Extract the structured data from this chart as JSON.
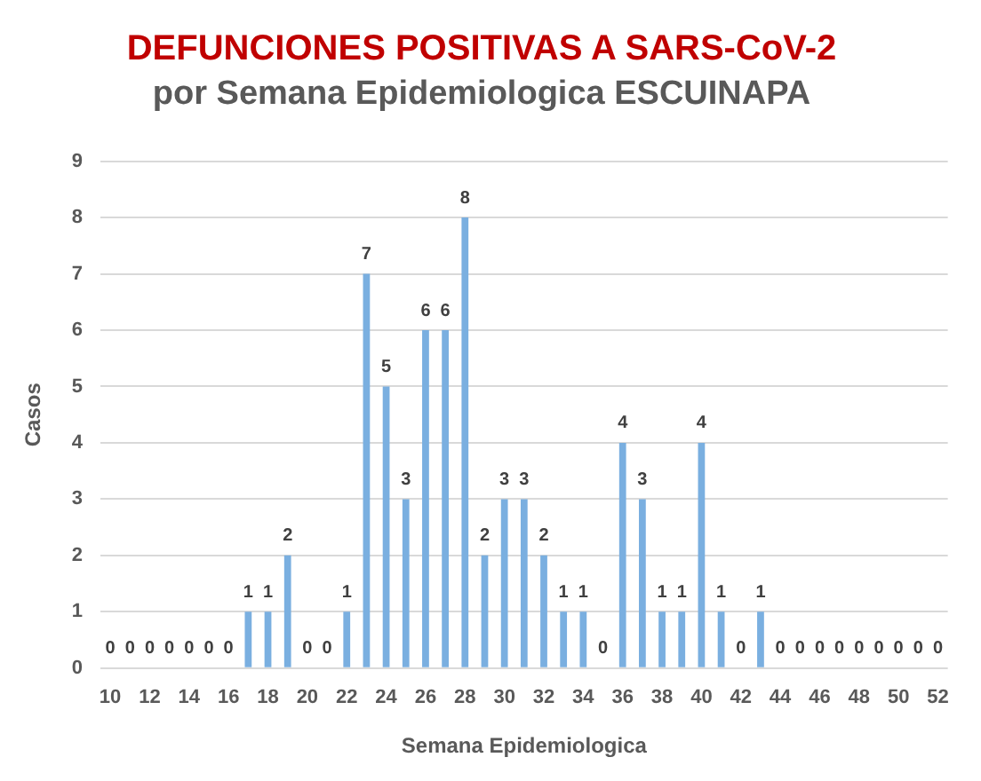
{
  "chart_data": {
    "type": "bar",
    "title": "DEFUNCIONES POSITIVAS A SARS-CoV-2",
    "subtitle": "por Semana Epidemiologica ESCUINAPA",
    "xlabel": "Semana Epidemiologica",
    "ylabel": "Casos",
    "categories": [
      "10",
      null,
      "12",
      null,
      "14",
      null,
      "16",
      null,
      "18",
      null,
      "20",
      null,
      "22",
      null,
      "24",
      null,
      "26",
      null,
      "28",
      null,
      "30",
      null,
      "32",
      null,
      "34",
      null,
      "36",
      null,
      "38",
      null,
      "40",
      null,
      "42",
      null,
      "44",
      null,
      "46",
      null,
      "48",
      null,
      "50",
      null,
      "52"
    ],
    "values": [
      0,
      0,
      0,
      0,
      0,
      0,
      0,
      1,
      1,
      2,
      0,
      0,
      1,
      7,
      5,
      3,
      6,
      6,
      8,
      2,
      3,
      3,
      2,
      1,
      1,
      0,
      4,
      3,
      1,
      1,
      4,
      1,
      0,
      1,
      0,
      0,
      0,
      0,
      0,
      0,
      0,
      0,
      0
    ],
    "color": "#7aafe0",
    "ylim": [
      0,
      9
    ],
    "yticks": [
      0,
      1,
      2,
      3,
      4,
      5,
      6,
      7,
      8,
      9
    ],
    "grid": "y",
    "data_labels": true,
    "legend": false
  }
}
